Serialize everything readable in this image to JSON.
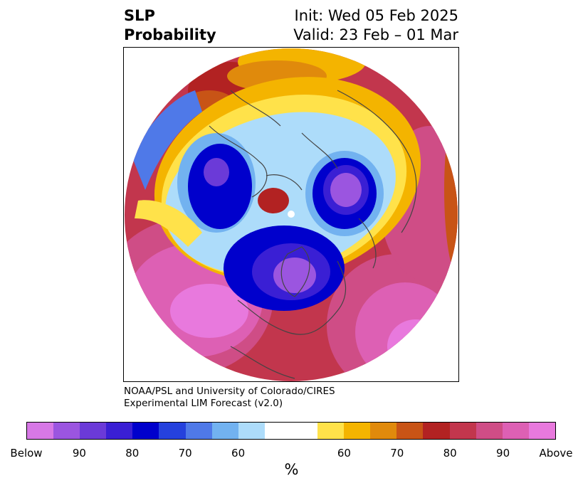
{
  "title": {
    "left_line1": "SLP",
    "left_line2": "Probability",
    "right_line1": "Init: Wed 05 Feb 2025",
    "right_line2": "Valid: 23 Feb – 01 Mar"
  },
  "credit": {
    "line1": "NOAA/PSL and University of Colorado/CIRES",
    "line2": "Experimental LIM Forecast (v2.0)"
  },
  "colorbar": {
    "colors": [
      "#d778e6",
      "#9b55e0",
      "#6b3ad8",
      "#3a1fd4",
      "#0000cc",
      "#2541dd",
      "#4f79e8",
      "#72b2f0",
      "#addcfa",
      "#ffffff",
      "#ffffff",
      "#ffe24a",
      "#f4b400",
      "#e08a0c",
      "#c85416",
      "#b22222",
      "#c2364d",
      "#cf4d86",
      "#dd60b4",
      "#e879dd"
    ],
    "tick_labels": [
      "Below",
      "90",
      "80",
      "70",
      "60",
      "60",
      "70",
      "80",
      "90",
      "Above"
    ],
    "label": "%"
  },
  "map_colors": {
    "above_max": "#e879dd",
    "above_90": "#dd60b4",
    "above_80": "#cf4d86",
    "above_70": "#c2364d",
    "above_60": "#b22222",
    "above_50": "#c85416",
    "above_40": "#e08a0c",
    "above_30": "#f4b400",
    "above_20": "#ffe24a",
    "below_20": "#addcfa",
    "below_30": "#72b2f0",
    "below_40": "#4f79e8",
    "below_50": "#2541dd",
    "below_60": "#0000cc",
    "below_70": "#3a1fd4",
    "below_80": "#6b3ad8",
    "below_max": "#9b55e0",
    "coastline": "#444444"
  }
}
